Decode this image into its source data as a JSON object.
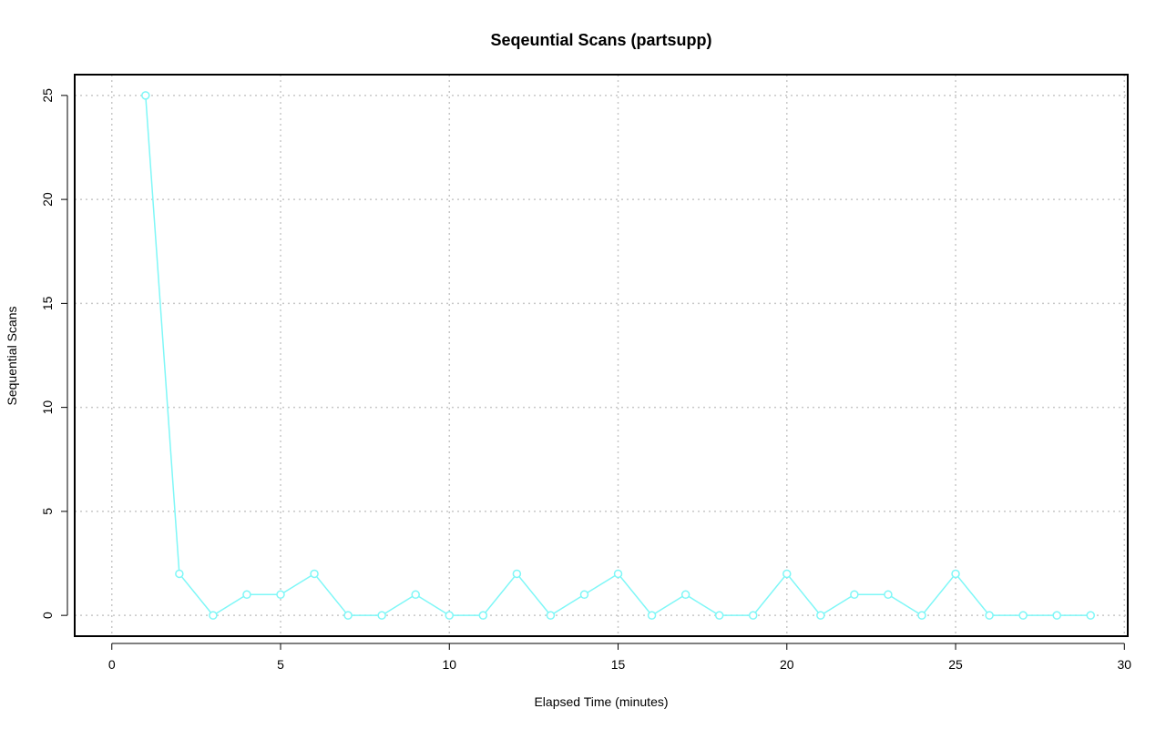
{
  "chart_data": {
    "type": "line",
    "title": "Seqeuntial Scans (partsupp)",
    "xlabel": "Elapsed Time (minutes)",
    "ylabel": "Sequential Scans",
    "xlim": [
      -1.1,
      30.1
    ],
    "ylim": [
      -1,
      26
    ],
    "x_ticks": [
      0,
      5,
      10,
      15,
      20,
      25,
      30
    ],
    "y_ticks": [
      0,
      5,
      10,
      15,
      20,
      25
    ],
    "grid": true,
    "series": [
      {
        "color": "#7ff7f7",
        "marker": "circle",
        "x": [
          1,
          2,
          3,
          4,
          5,
          6,
          7,
          8,
          9,
          10,
          11,
          12,
          13,
          14,
          15,
          16,
          17,
          18,
          19,
          20,
          21,
          22,
          23,
          24,
          25,
          26,
          27,
          28,
          29
        ],
        "y": [
          25,
          2,
          0,
          1,
          1,
          2,
          0,
          0,
          1,
          0,
          0,
          2,
          0,
          1,
          2,
          0,
          1,
          0,
          0,
          2,
          0,
          1,
          1,
          0,
          2,
          0,
          0,
          0,
          0
        ]
      }
    ]
  }
}
